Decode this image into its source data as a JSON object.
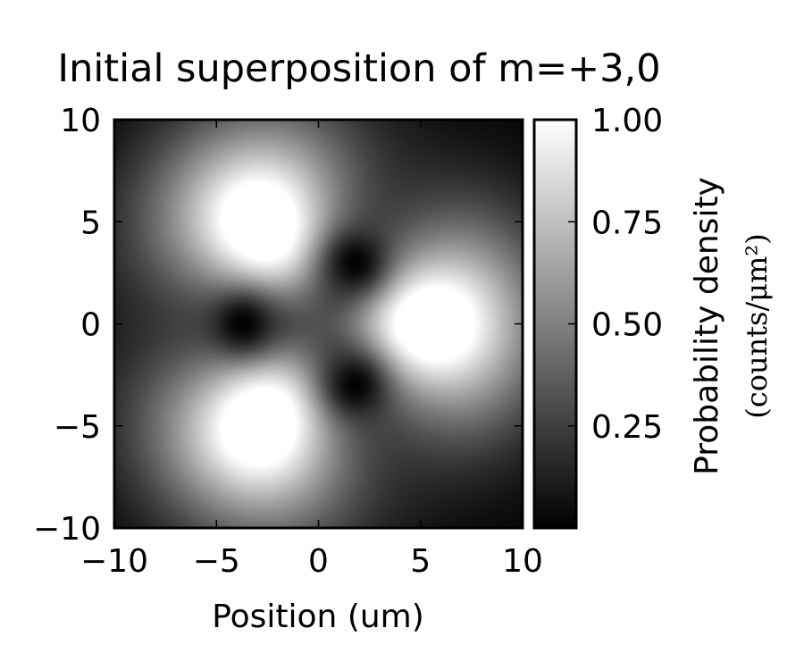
{
  "chart_data": {
    "type": "heatmap",
    "title": "Initial superposition of m=+3,0",
    "xlabel": "Position (um)",
    "ylabel": "",
    "xlim": [
      -10,
      10
    ],
    "ylim": [
      -10,
      10
    ],
    "xticks": [
      -10,
      -5,
      0,
      5,
      10
    ],
    "yticks": [
      -10,
      -5,
      0,
      5,
      10
    ],
    "xtick_labels": [
      "−10",
      "−5",
      "0",
      "5",
      "10"
    ],
    "ytick_labels": [
      "−10",
      "−5",
      "0",
      "5",
      "10"
    ],
    "colormap": "gray",
    "colorbar": {
      "label": "Probability density",
      "units_label": "(counts/μm²)",
      "vmin": 0.0,
      "vmax": 1.0,
      "ticks": [
        1.0,
        0.75,
        0.5,
        0.25
      ],
      "tick_labels": [
        "1.00",
        "0.75",
        "0.50",
        "0.25"
      ]
    },
    "features": {
      "dark_nodes": [
        {
          "x": -3.7,
          "y": 0.0
        },
        {
          "x": 1.8,
          "y": 3.0
        },
        {
          "x": 1.8,
          "y": -3.0
        }
      ],
      "bright_lobes": [
        {
          "x": 5.5,
          "y": 0.0
        },
        {
          "x": -2.8,
          "y": 5.0
        },
        {
          "x": -2.8,
          "y": -5.0
        }
      ],
      "ring_radius": 6.0
    },
    "grid": false
  },
  "colors": {
    "background": "#ffffff",
    "axes": "#000000",
    "text": "#000000"
  }
}
